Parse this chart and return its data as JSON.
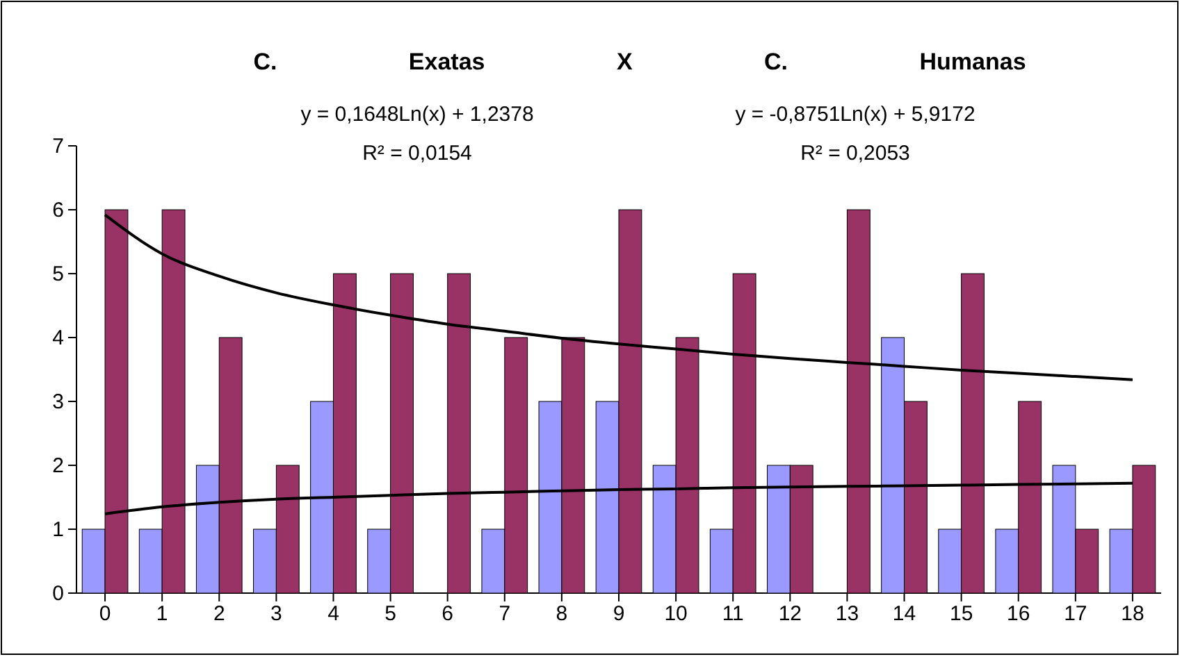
{
  "chart_data": {
    "type": "bar",
    "title": "C. Exatas X C. Humanas",
    "annotations": [
      "y = 0,1648Ln(x) + 1,2378",
      "R² = 0,0154",
      "y = -0,8751Ln(x) + 5,9172",
      "R² = 0,2053"
    ],
    "categories": [
      "0",
      "1",
      "2",
      "3",
      "4",
      "5",
      "6",
      "7",
      "8",
      "9",
      "10",
      "11",
      "12",
      "13",
      "14",
      "15",
      "16",
      "17",
      "18"
    ],
    "series": [
      {
        "color": "#9999ff",
        "values": [
          1,
          1,
          2,
          1,
          3,
          1,
          0,
          1,
          3,
          3,
          2,
          1,
          2,
          0,
          4,
          1,
          1,
          2,
          1
        ]
      },
      {
        "color": "#993366",
        "values": [
          6,
          6,
          4,
          2,
          5,
          5,
          5,
          4,
          4,
          6,
          4,
          5,
          2,
          6,
          3,
          5,
          3,
          1,
          2
        ]
      },
      {
        "type": "line",
        "color": "#000000",
        "x": [
          "0",
          "1",
          "2",
          "3",
          "4",
          "5",
          "6",
          "7",
          "8",
          "9",
          "10",
          "11",
          "12",
          "13",
          "14",
          "15",
          "16",
          "17",
          "18"
        ],
        "values": [
          1.24,
          1.35,
          1.42,
          1.47,
          1.5,
          1.53,
          1.56,
          1.58,
          1.6,
          1.62,
          1.63,
          1.65,
          1.66,
          1.67,
          1.68,
          1.69,
          1.7,
          1.71,
          1.72
        ]
      },
      {
        "type": "line",
        "color": "#000000",
        "x": [
          "0",
          "1",
          "2",
          "3",
          "4",
          "5",
          "6",
          "7",
          "8",
          "9",
          "10",
          "11",
          "12",
          "13",
          "14",
          "15",
          "16",
          "17",
          "18"
        ],
        "values": [
          5.92,
          5.31,
          4.96,
          4.7,
          4.51,
          4.35,
          4.21,
          4.1,
          3.99,
          3.9,
          3.82,
          3.74,
          3.67,
          3.61,
          3.55,
          3.49,
          3.44,
          3.39,
          3.34
        ]
      }
    ],
    "ylim": [
      0,
      7
    ],
    "yticks": [
      0,
      1,
      2,
      3,
      4,
      5,
      6,
      7
    ],
    "grid": false,
    "marker": "none",
    "line_style": "solid"
  }
}
